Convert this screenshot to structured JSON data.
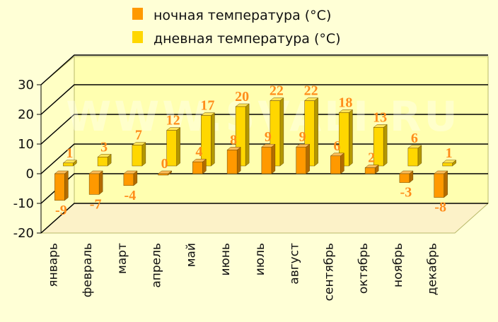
{
  "watermark": "WWW.SVALI.RU",
  "colors": {
    "night": "#FF9900",
    "day": "#FFD700",
    "label": "#FF8C1A",
    "background": "#FFFFD6",
    "floor": "#FCF2C8",
    "back_wall": "#FFFFB0"
  },
  "chart_data": {
    "type": "bar",
    "legend_position": "top",
    "grid": true,
    "ylim": [
      -20,
      30
    ],
    "yticks": [
      30,
      20,
      10,
      0,
      -10,
      -20
    ],
    "categories": [
      "январь",
      "февраль",
      "март",
      "апрель",
      "май",
      "июнь",
      "июль",
      "август",
      "сентябрь",
      "октябрь",
      "ноябрь",
      "декабрь"
    ],
    "series": [
      {
        "name": "ночная температура (°C)",
        "values": [
          -9,
          -7,
          -4,
          0,
          4,
          8,
          9,
          9,
          6,
          2,
          -3,
          -8
        ]
      },
      {
        "name": "дневная температура (°C)",
        "values": [
          1,
          3,
          7,
          12,
          17,
          20,
          22,
          22,
          18,
          13,
          6,
          1
        ]
      }
    ]
  }
}
